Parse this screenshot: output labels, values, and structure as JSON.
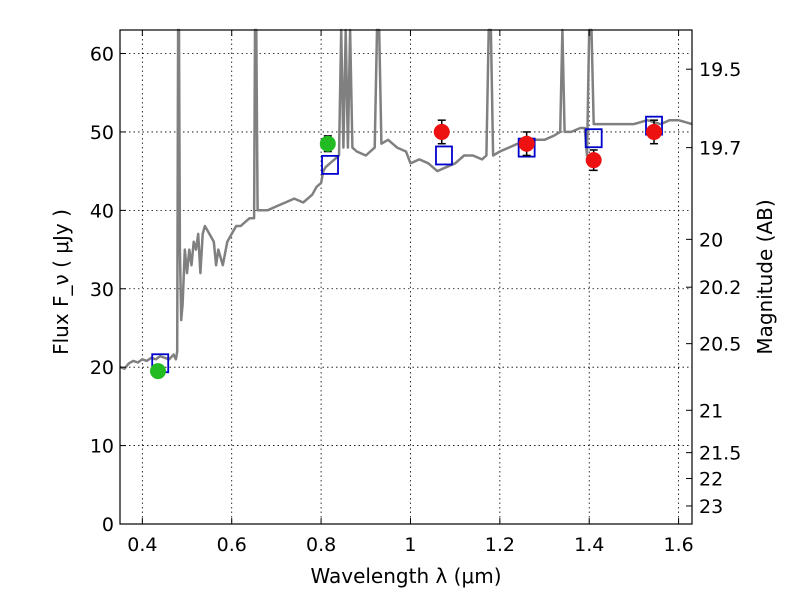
{
  "chart_data": {
    "type": "scatter",
    "xlabel": "Wavelength  λ (μm)",
    "ylabel": "Flux  F_ν  ( μJy )",
    "y2label": "Magnitude (AB)",
    "xlim": [
      0.35,
      1.63
    ],
    "ylim": [
      0,
      63
    ],
    "x_ticks": [
      {
        "value": 0.4,
        "label": "0.4"
      },
      {
        "value": 0.6,
        "label": "0.6"
      },
      {
        "value": 0.8,
        "label": "0.8"
      },
      {
        "value": 1.0,
        "label": "1"
      },
      {
        "value": 1.2,
        "label": "1.2"
      },
      {
        "value": 1.4,
        "label": "1.4"
      },
      {
        "value": 1.6,
        "label": "1.6"
      }
    ],
    "y_ticks": [
      0,
      10,
      20,
      30,
      40,
      50,
      60
    ],
    "y2_ticks": [
      {
        "flux": 58.0,
        "label": "19.5"
      },
      {
        "flux": 48.0,
        "label": "19.7"
      },
      {
        "flux": 36.3,
        "label": "20"
      },
      {
        "flux": 30.2,
        "label": "20.2"
      },
      {
        "flux": 23.0,
        "label": "20.5"
      },
      {
        "flux": 14.5,
        "label": "21"
      },
      {
        "flux": 9.1,
        "label": "21.5"
      },
      {
        "flux": 5.8,
        "label": "22"
      },
      {
        "flux": 2.3,
        "label": "23"
      }
    ],
    "grid": true,
    "colors": {
      "spectrum": "#808080",
      "model": "#0000cc",
      "green": "#22bb22",
      "red": "#ee1111",
      "errorbar": "#000000"
    },
    "series": [
      {
        "kind": "line",
        "points": [
          [
            0.35,
            20.0
          ],
          [
            0.36,
            19.8
          ],
          [
            0.37,
            20.5
          ],
          [
            0.38,
            20.8
          ],
          [
            0.39,
            20.6
          ],
          [
            0.4,
            21.0
          ],
          [
            0.41,
            20.8
          ],
          [
            0.42,
            21.2
          ],
          [
            0.43,
            21.0
          ],
          [
            0.44,
            21.4
          ],
          [
            0.45,
            21.2
          ],
          [
            0.46,
            21.0
          ],
          [
            0.47,
            21.6
          ],
          [
            0.475,
            21.0
          ],
          [
            0.478,
            22.0
          ],
          [
            0.48,
            63
          ],
          [
            0.482,
            63
          ],
          [
            0.484,
            35
          ],
          [
            0.487,
            26
          ],
          [
            0.49,
            28
          ],
          [
            0.495,
            35
          ],
          [
            0.5,
            32
          ],
          [
            0.505,
            35
          ],
          [
            0.51,
            33
          ],
          [
            0.515,
            36
          ],
          [
            0.52,
            35
          ],
          [
            0.525,
            37
          ],
          [
            0.53,
            32
          ],
          [
            0.535,
            37
          ],
          [
            0.54,
            38
          ],
          [
            0.55,
            37
          ],
          [
            0.56,
            36
          ],
          [
            0.565,
            33
          ],
          [
            0.57,
            35
          ],
          [
            0.58,
            33
          ],
          [
            0.59,
            36
          ],
          [
            0.6,
            37
          ],
          [
            0.61,
            38
          ],
          [
            0.62,
            38
          ],
          [
            0.63,
            38.5
          ],
          [
            0.64,
            39
          ],
          [
            0.65,
            39
          ],
          [
            0.652,
            63
          ],
          [
            0.655,
            63
          ],
          [
            0.658,
            40
          ],
          [
            0.66,
            40
          ],
          [
            0.68,
            40
          ],
          [
            0.7,
            40.5
          ],
          [
            0.72,
            41
          ],
          [
            0.74,
            41.5
          ],
          [
            0.76,
            41
          ],
          [
            0.78,
            42
          ],
          [
            0.79,
            43
          ],
          [
            0.8,
            43.5
          ],
          [
            0.805,
            45
          ],
          [
            0.81,
            45.5
          ],
          [
            0.82,
            46
          ],
          [
            0.83,
            46.5
          ],
          [
            0.84,
            47
          ],
          [
            0.845,
            63
          ],
          [
            0.85,
            48
          ],
          [
            0.855,
            63
          ],
          [
            0.86,
            48
          ],
          [
            0.865,
            63
          ],
          [
            0.87,
            48
          ],
          [
            0.88,
            47.5
          ],
          [
            0.9,
            47
          ],
          [
            0.92,
            48
          ],
          [
            0.925,
            63
          ],
          [
            0.93,
            63
          ],
          [
            0.935,
            48.5
          ],
          [
            0.95,
            49
          ],
          [
            0.97,
            48
          ],
          [
            0.99,
            47.5
          ],
          [
            1.0,
            46
          ],
          [
            1.02,
            46.5
          ],
          [
            1.04,
            46
          ],
          [
            1.06,
            45
          ],
          [
            1.08,
            45.5
          ],
          [
            1.1,
            46
          ],
          [
            1.12,
            47
          ],
          [
            1.14,
            47
          ],
          [
            1.16,
            46.5
          ],
          [
            1.17,
            47
          ],
          [
            1.175,
            63
          ],
          [
            1.18,
            63
          ],
          [
            1.185,
            47
          ],
          [
            1.2,
            47.5
          ],
          [
            1.22,
            48
          ],
          [
            1.24,
            48.5
          ],
          [
            1.26,
            48.5
          ],
          [
            1.28,
            49
          ],
          [
            1.3,
            49
          ],
          [
            1.32,
            49.5
          ],
          [
            1.335,
            50
          ],
          [
            1.34,
            63
          ],
          [
            1.345,
            50
          ],
          [
            1.36,
            50
          ],
          [
            1.38,
            50.5
          ],
          [
            1.39,
            50.5
          ],
          [
            1.395,
            47
          ],
          [
            1.4,
            63
          ],
          [
            1.405,
            63
          ],
          [
            1.41,
            51
          ],
          [
            1.43,
            51
          ],
          [
            1.45,
            51
          ],
          [
            1.48,
            51
          ],
          [
            1.5,
            51
          ],
          [
            1.53,
            51.5
          ],
          [
            1.56,
            51
          ],
          [
            1.58,
            51.5
          ],
          [
            1.6,
            51.5
          ],
          [
            1.63,
            51
          ]
        ]
      },
      {
        "kind": "squares",
        "points": [
          [
            0.44,
            20.5
          ],
          [
            0.82,
            45.8
          ],
          [
            1.075,
            47.0
          ],
          [
            1.26,
            48.0
          ],
          [
            1.41,
            49.2
          ],
          [
            1.545,
            50.8
          ]
        ]
      },
      {
        "kind": "markers-green",
        "points": [
          [
            0.435,
            19.5,
            0.8
          ],
          [
            0.815,
            48.5,
            1.0
          ]
        ]
      },
      {
        "kind": "markers-red",
        "points": [
          [
            1.07,
            50.0,
            1.5
          ],
          [
            1.26,
            48.5,
            1.5
          ],
          [
            1.41,
            46.4,
            1.3
          ],
          [
            1.545,
            50.0,
            1.5
          ]
        ]
      }
    ]
  }
}
